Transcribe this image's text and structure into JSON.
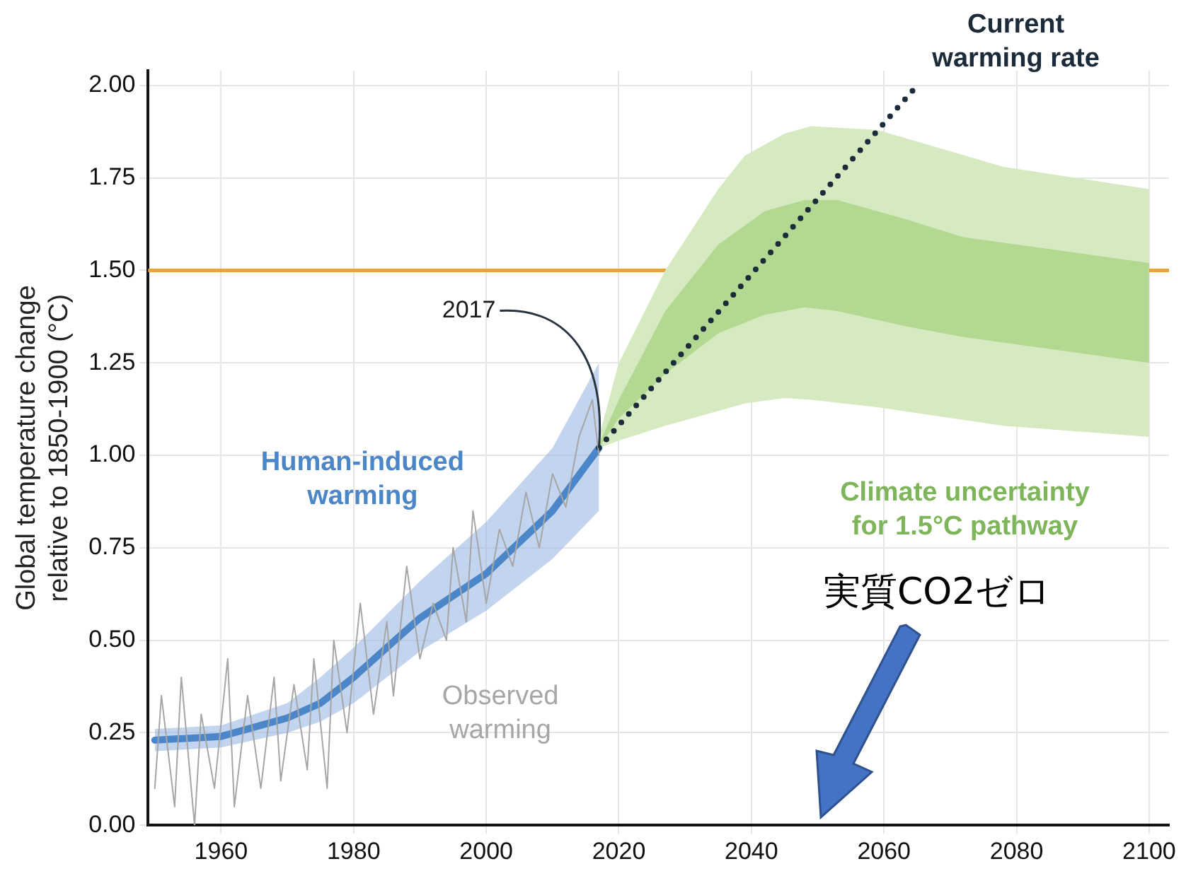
{
  "chart_data": {
    "type": "line",
    "ylabel": "Global temperature change relative to 1850-1900 (°C)",
    "xlim": [
      1949,
      2103
    ],
    "xticks": [
      1960,
      1980,
      2000,
      2020,
      2040,
      2060,
      2080,
      2100
    ],
    "ylim": [
      0,
      2.04
    ],
    "yticks": [
      {
        "value": 0,
        "label": "0.00"
      },
      {
        "value": 0.25,
        "label": "0.25"
      },
      {
        "value": 0.5,
        "label": "0.50"
      },
      {
        "value": 0.75,
        "label": "0.75"
      },
      {
        "value": 1,
        "label": "1.00"
      },
      {
        "value": 1.25,
        "label": "1.25"
      },
      {
        "value": 1.5,
        "label": "1.50"
      },
      {
        "value": 1.75,
        "label": "1.75"
      },
      {
        "value": 2,
        "label": "2.00"
      }
    ],
    "grid": true,
    "marker": "none",
    "series": [
      {
        "type": "area",
        "color": "#d6eac2",
        "x": [
          2017,
          2020,
          2027,
          2035,
          2039,
          2045,
          2049,
          2059,
          2078,
          2100
        ],
        "values": [
          null,
          null,
          null,
          null,
          null,
          null,
          null,
          null,
          null,
          null
        ],
        "lower": [
          1.02,
          1.04,
          1.08,
          1.12,
          1.14,
          1.155,
          1.15,
          1.13,
          1.08,
          1.05
        ],
        "upper": [
          1.05,
          1.25,
          1.5,
          1.72,
          1.81,
          1.87,
          1.89,
          1.88,
          1.78,
          1.72
        ]
      },
      {
        "type": "area",
        "color": "#b3d892",
        "x": [
          2017,
          2020,
          2027,
          2035,
          2042,
          2048,
          2053,
          2063,
          2072,
          2100
        ],
        "values": [
          null,
          null,
          null,
          null,
          null,
          null,
          null,
          null,
          null,
          null
        ],
        "lower": [
          1.02,
          1.1,
          1.22,
          1.33,
          1.38,
          1.4,
          1.39,
          1.35,
          1.32,
          1.25
        ],
        "upper": [
          1.03,
          1.15,
          1.39,
          1.57,
          1.66,
          1.69,
          1.69,
          1.64,
          1.59,
          1.52
        ]
      },
      {
        "name": "Observed warming",
        "type": "line",
        "color": "#a6a6a6",
        "x": [
          1950,
          1951,
          1953,
          1954,
          1956,
          1957,
          1959,
          1961,
          1962,
          1964,
          1966,
          1968,
          1969,
          1971,
          1973,
          1974,
          1976,
          1977,
          1979,
          1981,
          1983,
          1985,
          1986,
          1988,
          1990,
          1992,
          1994,
          1995,
          1997,
          1998,
          2000,
          2002,
          2004,
          2006,
          2008,
          2010,
          2012,
          2014,
          2016,
          2017
        ],
        "values": [
          0.1,
          0.35,
          0.05,
          0.4,
          0.0,
          0.3,
          0.1,
          0.45,
          0.05,
          0.35,
          0.1,
          0.4,
          0.12,
          0.38,
          0.15,
          0.45,
          0.1,
          0.5,
          0.25,
          0.6,
          0.3,
          0.55,
          0.35,
          0.7,
          0.45,
          0.6,
          0.5,
          0.75,
          0.55,
          0.85,
          0.6,
          0.8,
          0.7,
          0.9,
          0.75,
          0.95,
          0.86,
          1.05,
          1.15,
          1.0
        ]
      },
      {
        "name": "Human-induced warming",
        "type": "line",
        "color": "#4a86c8",
        "x": [
          1950,
          1960,
          1970,
          1975,
          1980,
          1985,
          1990,
          2000,
          2010,
          2017
        ],
        "values": [
          0.23,
          0.24,
          0.29,
          0.33,
          0.4,
          0.48,
          0.56,
          0.68,
          0.85,
          1.02
        ],
        "lower": [
          0.2,
          0.21,
          0.25,
          0.28,
          0.33,
          0.4,
          0.47,
          0.58,
          0.72,
          0.85
        ],
        "upper": [
          0.26,
          0.27,
          0.33,
          0.4,
          0.48,
          0.57,
          0.66,
          0.82,
          1.02,
          1.25
        ]
      },
      {
        "name": "Current warming rate",
        "type": "line",
        "line_style": "dotted",
        "color": "#1c2b3a",
        "x": [
          2017,
          2065
        ],
        "values": [
          1.02,
          2.0
        ]
      }
    ],
    "ref_lines": [
      {
        "axis": "y",
        "value": 1.5,
        "color": "#e8a33a"
      }
    ],
    "annotations": [
      {
        "text": "2017",
        "x": 2017,
        "y": 1.02
      },
      "Climate uncertainty for 1.5°C pathway",
      "実質CO2ゼロ"
    ]
  }
}
